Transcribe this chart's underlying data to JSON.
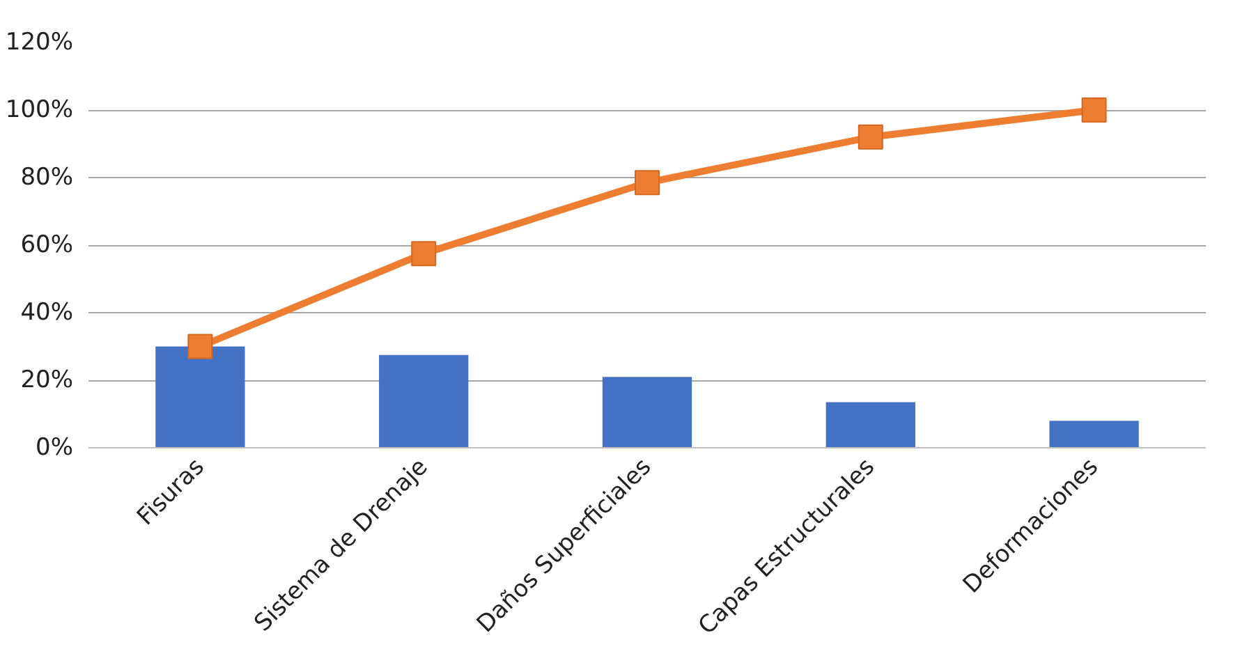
{
  "chart_data": {
    "type": "bar",
    "categories": [
      "Fisuras",
      "Sistema de Drenaje",
      "Daños Superficiales",
      "Capas Estructurales",
      "Deformaciones"
    ],
    "series": [
      {
        "color": "#4472c4",
        "values": [
          30,
          27.5,
          21,
          13.5,
          8
        ]
      },
      {
        "type": "line",
        "color": "#ed7d31",
        "marker": "square",
        "values": [
          30,
          57.5,
          78.5,
          92,
          100
        ]
      }
    ],
    "ylim": [
      0,
      120
    ],
    "yticks": [
      {
        "value": 0,
        "label": "0%"
      },
      {
        "value": 20,
        "label": "20%"
      },
      {
        "value": 40,
        "label": "40%"
      },
      {
        "value": 60,
        "label": "60%"
      },
      {
        "value": 80,
        "label": "80%"
      },
      {
        "value": 100,
        "label": "100%"
      },
      {
        "value": 120,
        "label": "120%"
      }
    ],
    "grid": "y"
  }
}
